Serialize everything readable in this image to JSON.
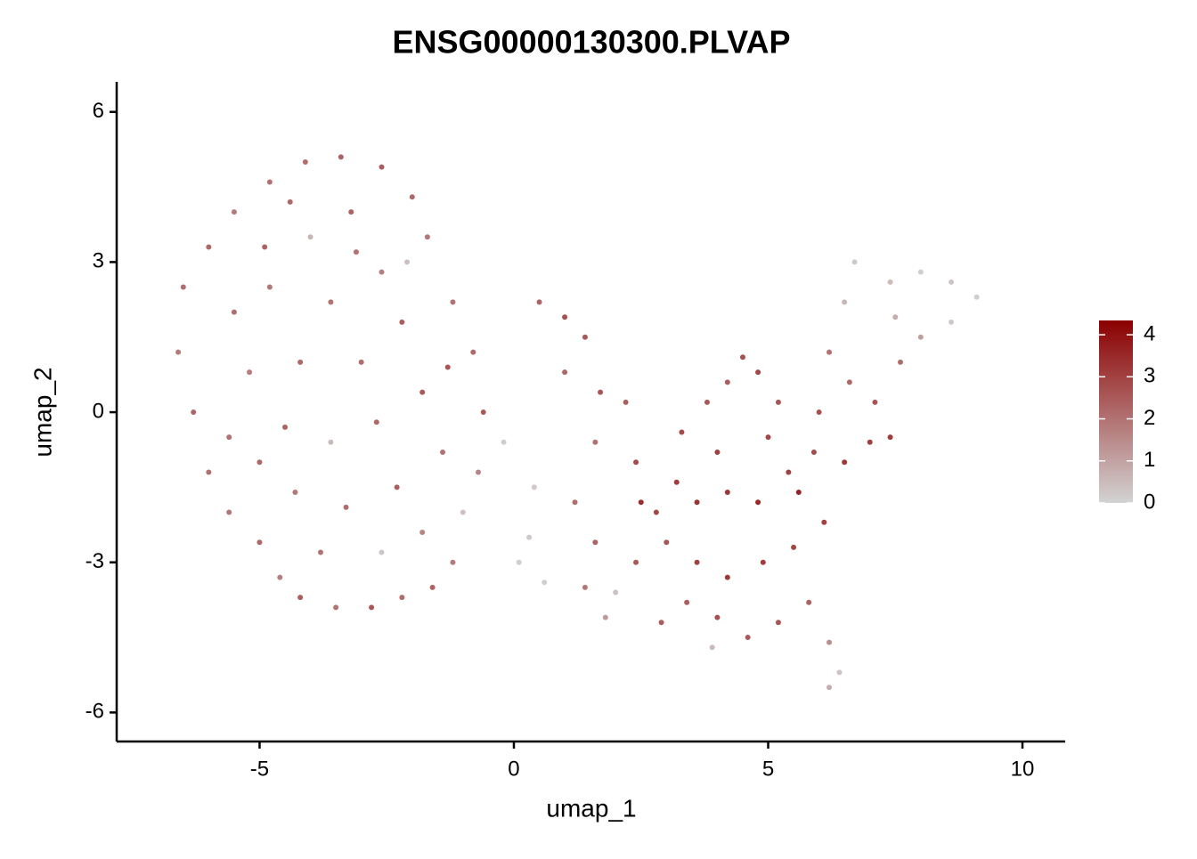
{
  "chart_data": {
    "type": "scatter",
    "title": "ENSG00000130300.PLVAP",
    "x_label": "umap_1",
    "y_label": "umap_2",
    "xlim": [
      -7.81,
      10.84
    ],
    "ylim": [
      -6.58,
      6.6
    ],
    "xticks": [
      -5,
      0,
      5,
      10
    ],
    "yticks": [
      -6,
      -3,
      0,
      3,
      6
    ],
    "color_low": "#d3d3d3",
    "color_high": "#8b0000",
    "colorbar_lim": [
      0,
      4.34
    ],
    "colorbar_ticks": [
      0,
      1,
      2,
      3,
      4
    ],
    "x": [
      -6.5,
      -6.6,
      -6.3,
      -6.0,
      -5.6,
      -5.0,
      -4.6,
      -4.2,
      -3.5,
      -2.8,
      -2.2,
      -1.6,
      -1.2,
      -1.0,
      -0.7,
      -0.6,
      -0.8,
      -1.2,
      -1.7,
      -2.0,
      -2.6,
      -3.4,
      -4.1,
      -4.8,
      -5.5,
      -6.0,
      -5.5,
      -4.8,
      -4.0,
      -3.2,
      -3.6,
      -2.6,
      -2.2,
      -3.0,
      -4.2,
      -5.2,
      -5.6,
      -4.5,
      -3.6,
      -2.7,
      -1.8,
      -1.4,
      -2.3,
      -3.3,
      -4.3,
      -5.0,
      -3.8,
      -2.6,
      -1.8,
      -4.9,
      -3.1,
      -4.4,
      -2.1,
      -1.3,
      0.1,
      0.3,
      -0.2,
      0.4,
      0.6,
      0.5,
      1.0,
      1.4,
      1.0,
      1.7,
      2.2,
      1.6,
      2.4,
      1.2,
      1.6,
      1.4,
      1.8,
      2.4,
      2.8,
      3.2,
      3.6,
      4.2,
      4.8,
      5.4,
      5.9,
      6.5,
      7.0,
      7.4,
      7.1,
      6.6,
      6.2,
      6.5,
      6.7,
      7.4,
      8.0,
      8.6,
      9.1,
      8.6,
      8.0,
      7.5,
      7.6,
      4.5,
      4.8,
      4.2,
      5.2,
      3.8,
      3.3,
      4.0,
      5.0,
      6.0,
      3.0,
      3.6,
      4.2,
      4.9,
      5.5,
      6.1,
      3.4,
      4.0,
      4.6,
      5.2,
      5.8,
      6.2,
      6.4,
      6.2,
      3.9,
      2.9,
      2.0,
      2.5,
      5.6
    ],
    "y": [
      2.5,
      1.2,
      0,
      -1.2,
      -2.0,
      -2.6,
      -3.3,
      -3.7,
      -3.9,
      -3.9,
      -3.7,
      -3.5,
      -3.0,
      -2.0,
      -1.2,
      0,
      1.2,
      2.2,
      3.5,
      4.3,
      4.9,
      5.1,
      5.0,
      4.6,
      4.0,
      3.3,
      2,
      2.5,
      3.5,
      4,
      2.2,
      2.8,
      1.8,
      1.0,
      1.0,
      0.8,
      -0.5,
      -0.3,
      -0.6,
      -0.2,
      0.4,
      -0.8,
      -1.5,
      -1.9,
      -1.6,
      -1.0,
      -2.8,
      -2.8,
      -2.4,
      3.3,
      3.2,
      4.2,
      3.0,
      0.9,
      -3.0,
      -2.5,
      -0.6,
      -1.5,
      -3.4,
      2.2,
      1.9,
      1.5,
      0.8,
      0.4,
      0.2,
      -0.6,
      -1.0,
      -1.8,
      -2.6,
      -3.5,
      -4.1,
      -3.0,
      -2.0,
      -1.4,
      -1.8,
      -1.6,
      -1.8,
      -1.2,
      -0.8,
      -1.0,
      -0.6,
      -0.5,
      0.2,
      0.6,
      1.2,
      2.2,
      3.0,
      2.6,
      2.8,
      2.6,
      2.3,
      1.8,
      1.5,
      1.9,
      1.0,
      1.1,
      0.8,
      0.6,
      0.2,
      0.2,
      -0.4,
      -0.8,
      -0.5,
      0,
      -2.6,
      -3.0,
      -3.3,
      -3.0,
      -2.7,
      -2.2,
      -3.8,
      -4.1,
      -4.5,
      -4.2,
      -3.8,
      -4.6,
      -5.2,
      -5.5,
      -4.7,
      -4.2,
      -3.6,
      -1.8,
      -1.6
    ],
    "values": [
      2.1,
      1.8,
      2.3,
      2.0,
      1.9,
      2.2,
      1.7,
      2.4,
      2.0,
      2.6,
      2.1,
      2.3,
      1.8,
      0.4,
      1.6,
      2.5,
      2.2,
      2.0,
      1.9,
      2.2,
      2.4,
      2.3,
      2.1,
      2.0,
      1.8,
      2.2,
      2.1,
      1.9,
      0.6,
      2.3,
      2.0,
      1.7,
      2.4,
      2.1,
      2.2,
      1.8,
      2.0,
      2.3,
      0.5,
      2.2,
      2.5,
      2.0,
      2.4,
      2.1,
      1.9,
      2.2,
      2.0,
      0.3,
      1.6,
      2.3,
      2.0,
      2.2,
      0.4,
      2.6,
      0.1,
      0.2,
      0.1,
      0.2,
      0.1,
      2.3,
      2.7,
      2.5,
      2.2,
      2.6,
      2.4,
      2.0,
      2.8,
      2.1,
      2.3,
      1.9,
      1.2,
      2.5,
      2.9,
      3.1,
      3.3,
      3.2,
      3.5,
      3.0,
      2.8,
      3.2,
      3.0,
      3.1,
      2.6,
      2.2,
      2.0,
      0.6,
      0.2,
      0.5,
      0.1,
      0.3,
      0.1,
      0.2,
      1.1,
      0.8,
      2.1,
      2.7,
      2.9,
      2.4,
      2.6,
      2.5,
      2.8,
      3.0,
      2.9,
      2.7,
      2.6,
      3.0,
      3.2,
      3.1,
      2.9,
      3.0,
      2.4,
      2.7,
      2.5,
      2.6,
      2.3,
      1.4,
      0.3,
      0.8,
      0.5,
      2.4,
      0.4,
      3.4,
      3.6
    ]
  }
}
